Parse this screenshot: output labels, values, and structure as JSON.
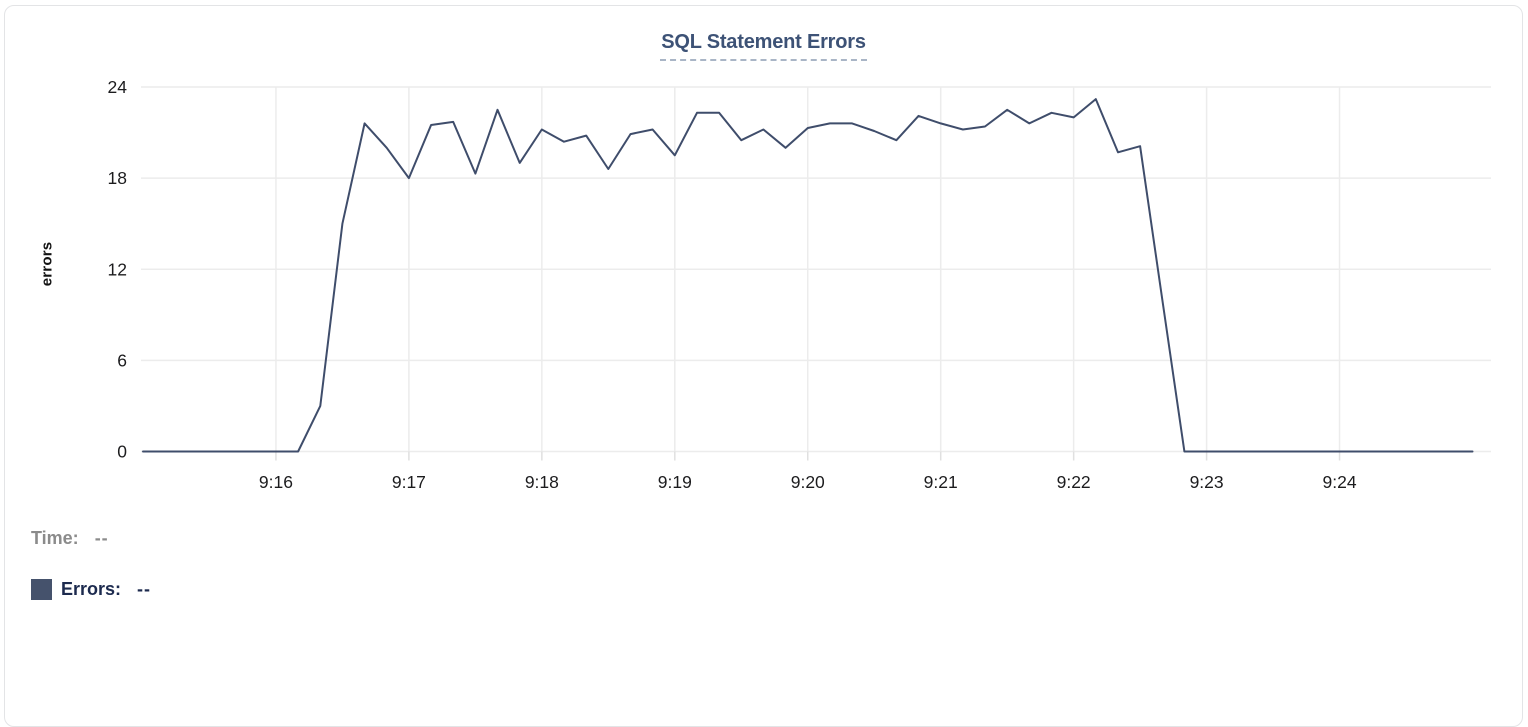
{
  "chart": {
    "title": "SQL Statement Errors",
    "y_axis_label": "errors"
  },
  "tooltip": {
    "time_label": "Time:",
    "time_value": "--",
    "errors_label": "Errors:",
    "errors_value": "--"
  },
  "colors": {
    "line": "#3f4d6b",
    "swatch": "#45526c",
    "title": "#3d5276",
    "grid": "#ececec",
    "tick_text": "#1c1c1e",
    "time_text": "#8b8b8b",
    "errors_text": "#1c2a4e"
  },
  "chart_data": {
    "type": "line",
    "title": "SQL Statement Errors",
    "xlabel": "",
    "ylabel": "errors",
    "ylim": [
      0,
      24
    ],
    "y_ticks": [
      0,
      6,
      12,
      18,
      24
    ],
    "x_ticks": [
      "9:16",
      "9:17",
      "9:18",
      "9:19",
      "9:20",
      "9:21",
      "9:22",
      "9:23",
      "9:24"
    ],
    "x_range": [
      "9:15:00",
      "9:25:00"
    ],
    "grid": true,
    "legend_position": "bottom-left",
    "series": [
      {
        "name": "Errors",
        "color": "#3f4d6b",
        "x": [
          "9:15:00",
          "9:15:10",
          "9:15:20",
          "9:15:30",
          "9:15:40",
          "9:15:50",
          "9:16:00",
          "9:16:10",
          "9:16:20",
          "9:16:30",
          "9:16:40",
          "9:16:50",
          "9:17:00",
          "9:17:10",
          "9:17:20",
          "9:17:30",
          "9:17:40",
          "9:17:50",
          "9:18:00",
          "9:18:10",
          "9:18:20",
          "9:18:30",
          "9:18:40",
          "9:18:50",
          "9:19:00",
          "9:19:10",
          "9:19:20",
          "9:19:30",
          "9:19:40",
          "9:19:50",
          "9:20:00",
          "9:20:10",
          "9:20:20",
          "9:20:30",
          "9:20:40",
          "9:20:50",
          "9:21:00",
          "9:21:10",
          "9:21:20",
          "9:21:30",
          "9:21:40",
          "9:21:50",
          "9:22:00",
          "9:22:10",
          "9:22:20",
          "9:22:30",
          "9:22:40",
          "9:22:50",
          "9:23:00",
          "9:23:10",
          "9:23:20",
          "9:23:30",
          "9:23:40",
          "9:23:50",
          "9:24:00",
          "9:24:10",
          "9:24:20",
          "9:24:30",
          "9:24:40",
          "9:24:50",
          "9:25:00"
        ],
        "values": [
          0,
          0,
          0,
          0,
          0,
          0,
          0,
          0,
          3,
          15,
          21.6,
          20,
          18,
          21.5,
          21.7,
          18.3,
          22.5,
          19,
          21.2,
          20.4,
          20.8,
          18.6,
          20.9,
          21.2,
          19.5,
          22.3,
          22.3,
          20.5,
          21.2,
          20,
          21.3,
          21.6,
          21.6,
          21.1,
          20.5,
          22.1,
          21.6,
          21.2,
          21.4,
          22.5,
          21.6,
          22.3,
          22,
          23.2,
          19.7,
          20.1,
          10,
          0,
          0,
          0,
          0,
          0,
          0,
          0,
          0,
          0,
          0,
          0,
          0,
          0,
          0
        ]
      }
    ]
  }
}
